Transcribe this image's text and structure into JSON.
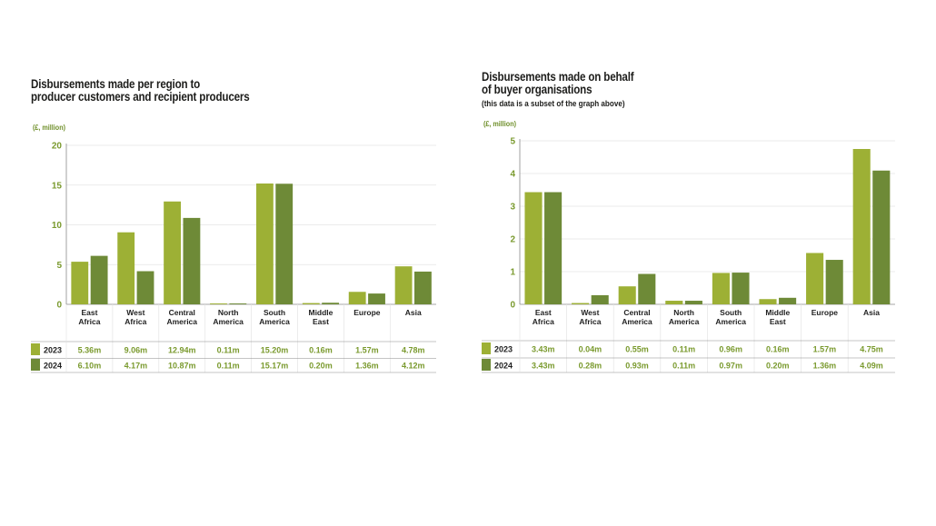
{
  "colors": {
    "c2023": "#9db035",
    "c2024": "#6e8a37",
    "tick": "#7a9a2e",
    "grid": "#e4e4e4",
    "axis": "#8a8a8a"
  },
  "chart_data": [
    {
      "type": "bar",
      "title_line1": "Disbursements made per region to",
      "title_line2": "producer customers and recipient producers",
      "subtitle": "",
      "unit_label": "(£, million)",
      "categories": [
        [
          "East",
          "Africa"
        ],
        [
          "West",
          "Africa"
        ],
        [
          "Central",
          "America"
        ],
        [
          "North",
          "America"
        ],
        [
          "South",
          "America"
        ],
        [
          "Middle",
          "East"
        ],
        [
          "Europe"
        ],
        [
          "Asia"
        ]
      ],
      "ylim": [
        0,
        20
      ],
      "yticks": [
        "0",
        "5",
        "10",
        "15",
        "20"
      ],
      "series": [
        {
          "name": "2023",
          "values": [
            5.36,
            9.06,
            12.94,
            0.11,
            15.2,
            0.16,
            1.57,
            4.78
          ],
          "labels": [
            "5.36m",
            "9.06m",
            "12.94m",
            "0.11m",
            "15.20m",
            "0.16m",
            "1.57m",
            "4.78m"
          ]
        },
        {
          "name": "2024",
          "values": [
            6.1,
            4.17,
            10.87,
            0.11,
            15.17,
            0.2,
            1.36,
            4.12
          ],
          "labels": [
            "6.10m",
            "4.17m",
            "10.87m",
            "0.11m",
            "15.17m",
            "0.20m",
            "1.36m",
            "4.12m"
          ]
        }
      ],
      "grid": true
    },
    {
      "type": "bar",
      "title_line1": "Disbursements made on behalf",
      "title_line2": "of buyer organisations",
      "subtitle": "(this data is a subset of the graph above)",
      "unit_label": "(£, million)",
      "categories": [
        [
          "East",
          "Africa"
        ],
        [
          "West",
          "Africa"
        ],
        [
          "Central",
          "America"
        ],
        [
          "North",
          "America"
        ],
        [
          "South",
          "America"
        ],
        [
          "Middle",
          "East"
        ],
        [
          "Europe"
        ],
        [
          "Asia"
        ]
      ],
      "ylim": [
        0,
        5
      ],
      "yticks": [
        "0",
        "1",
        "2",
        "3",
        "4",
        "5"
      ],
      "series": [
        {
          "name": "2023",
          "values": [
            3.43,
            0.04,
            0.55,
            0.11,
            0.96,
            0.16,
            1.57,
            4.75
          ],
          "labels": [
            "3.43m",
            "0.04m",
            "0.55m",
            "0.11m",
            "0.96m",
            "0.16m",
            "1.57m",
            "4.75m"
          ]
        },
        {
          "name": "2024",
          "values": [
            3.43,
            0.28,
            0.93,
            0.11,
            0.97,
            0.2,
            1.36,
            4.09
          ],
          "labels": [
            "3.43m",
            "0.28m",
            "0.93m",
            "0.11m",
            "0.97m",
            "0.20m",
            "1.36m",
            "4.09m"
          ]
        }
      ],
      "grid": true
    }
  ]
}
